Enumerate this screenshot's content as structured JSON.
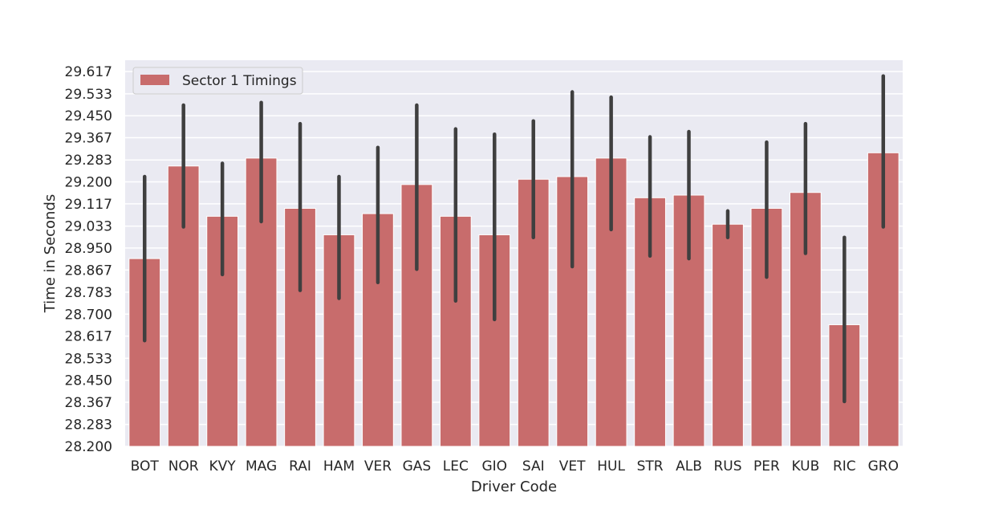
{
  "chart_data": {
    "type": "bar",
    "title": "",
    "xlabel": "Driver Code",
    "ylabel": "Time in Seconds",
    "ylim": [
      28.2,
      29.66
    ],
    "yticks": [
      "28.200",
      "28.283",
      "28.367",
      "28.450",
      "28.533",
      "28.617",
      "28.700",
      "28.783",
      "28.867",
      "28.950",
      "29.033",
      "29.117",
      "29.200",
      "29.283",
      "29.367",
      "29.450",
      "29.533",
      "29.617"
    ],
    "categories": [
      "BOT",
      "NOR",
      "KVY",
      "MAG",
      "RAI",
      "HAM",
      "VER",
      "GAS",
      "LEC",
      "GIO",
      "SAI",
      "VET",
      "HUL",
      "STR",
      "ALB",
      "RUS",
      "PER",
      "KUB",
      "RIC",
      "GRO"
    ],
    "series": [
      {
        "name": "Sector 1 Timings",
        "color": "#c86c6c",
        "values": [
          28.91,
          29.26,
          29.07,
          29.29,
          29.1,
          29.0,
          29.08,
          29.19,
          29.07,
          29.0,
          29.21,
          29.22,
          29.29,
          29.14,
          29.15,
          29.04,
          29.1,
          29.16,
          28.66,
          29.31
        ],
        "error_low": [
          28.6,
          29.03,
          28.85,
          29.05,
          28.79,
          28.76,
          28.82,
          28.87,
          28.75,
          28.68,
          28.99,
          28.88,
          29.02,
          28.92,
          28.91,
          28.99,
          28.84,
          28.93,
          28.37,
          29.03
        ],
        "error_high": [
          29.22,
          29.49,
          29.27,
          29.5,
          29.42,
          29.22,
          29.33,
          29.49,
          29.4,
          29.38,
          29.43,
          29.54,
          29.52,
          29.37,
          29.39,
          29.09,
          29.35,
          29.42,
          28.99,
          29.6
        ]
      }
    ],
    "legend_position": "top-left",
    "grid": true,
    "colors": {
      "background": "#eaeaf2",
      "grid": "#ffffff",
      "bar": "#c86c6c",
      "errorbar": "#3f3f3f"
    }
  }
}
